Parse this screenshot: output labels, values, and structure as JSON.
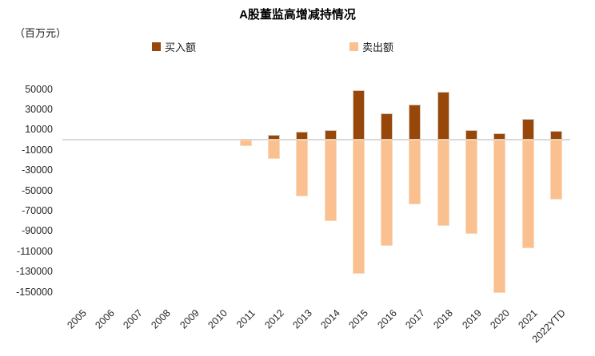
{
  "chart": {
    "title": "A股董监高增减持情况",
    "unit_label": "（百万元）",
    "legend": [
      {
        "label": "买入额",
        "color": "#97470a"
      },
      {
        "label": "卖出额",
        "color": "#fac090"
      }
    ]
  },
  "chart_data": {
    "type": "bar",
    "title": "A股董监高增减持情况",
    "xlabel": "",
    "ylabel": "（百万元）",
    "categories": [
      "2005",
      "2006",
      "2007",
      "2008",
      "2009",
      "2010",
      "2011",
      "2012",
      "2013",
      "2014",
      "2015",
      "2016",
      "2017",
      "2018",
      "2019",
      "2020",
      "2021",
      "2022YTD"
    ],
    "series": [
      {
        "name": "买入额",
        "color": "#97470a",
        "values": [
          0,
          0,
          0,
          0,
          0,
          0,
          800,
          4500,
          7900,
          9200,
          49000,
          26000,
          34500,
          47000,
          9200,
          6500,
          20500,
          8400
        ]
      },
      {
        "name": "卖出额",
        "color": "#fac090",
        "values": [
          0,
          0,
          0,
          0,
          0,
          0,
          -6500,
          -19000,
          -56000,
          -80000,
          -132000,
          -105000,
          -64000,
          -85000,
          -93000,
          -151000,
          -107000,
          -59000
        ]
      }
    ],
    "ylim": [
      -150000,
      50000
    ],
    "ytick_step": 20000,
    "grid": "zero-line-only",
    "legend_position": "top",
    "zero_line_color": "#d9d9d9"
  }
}
